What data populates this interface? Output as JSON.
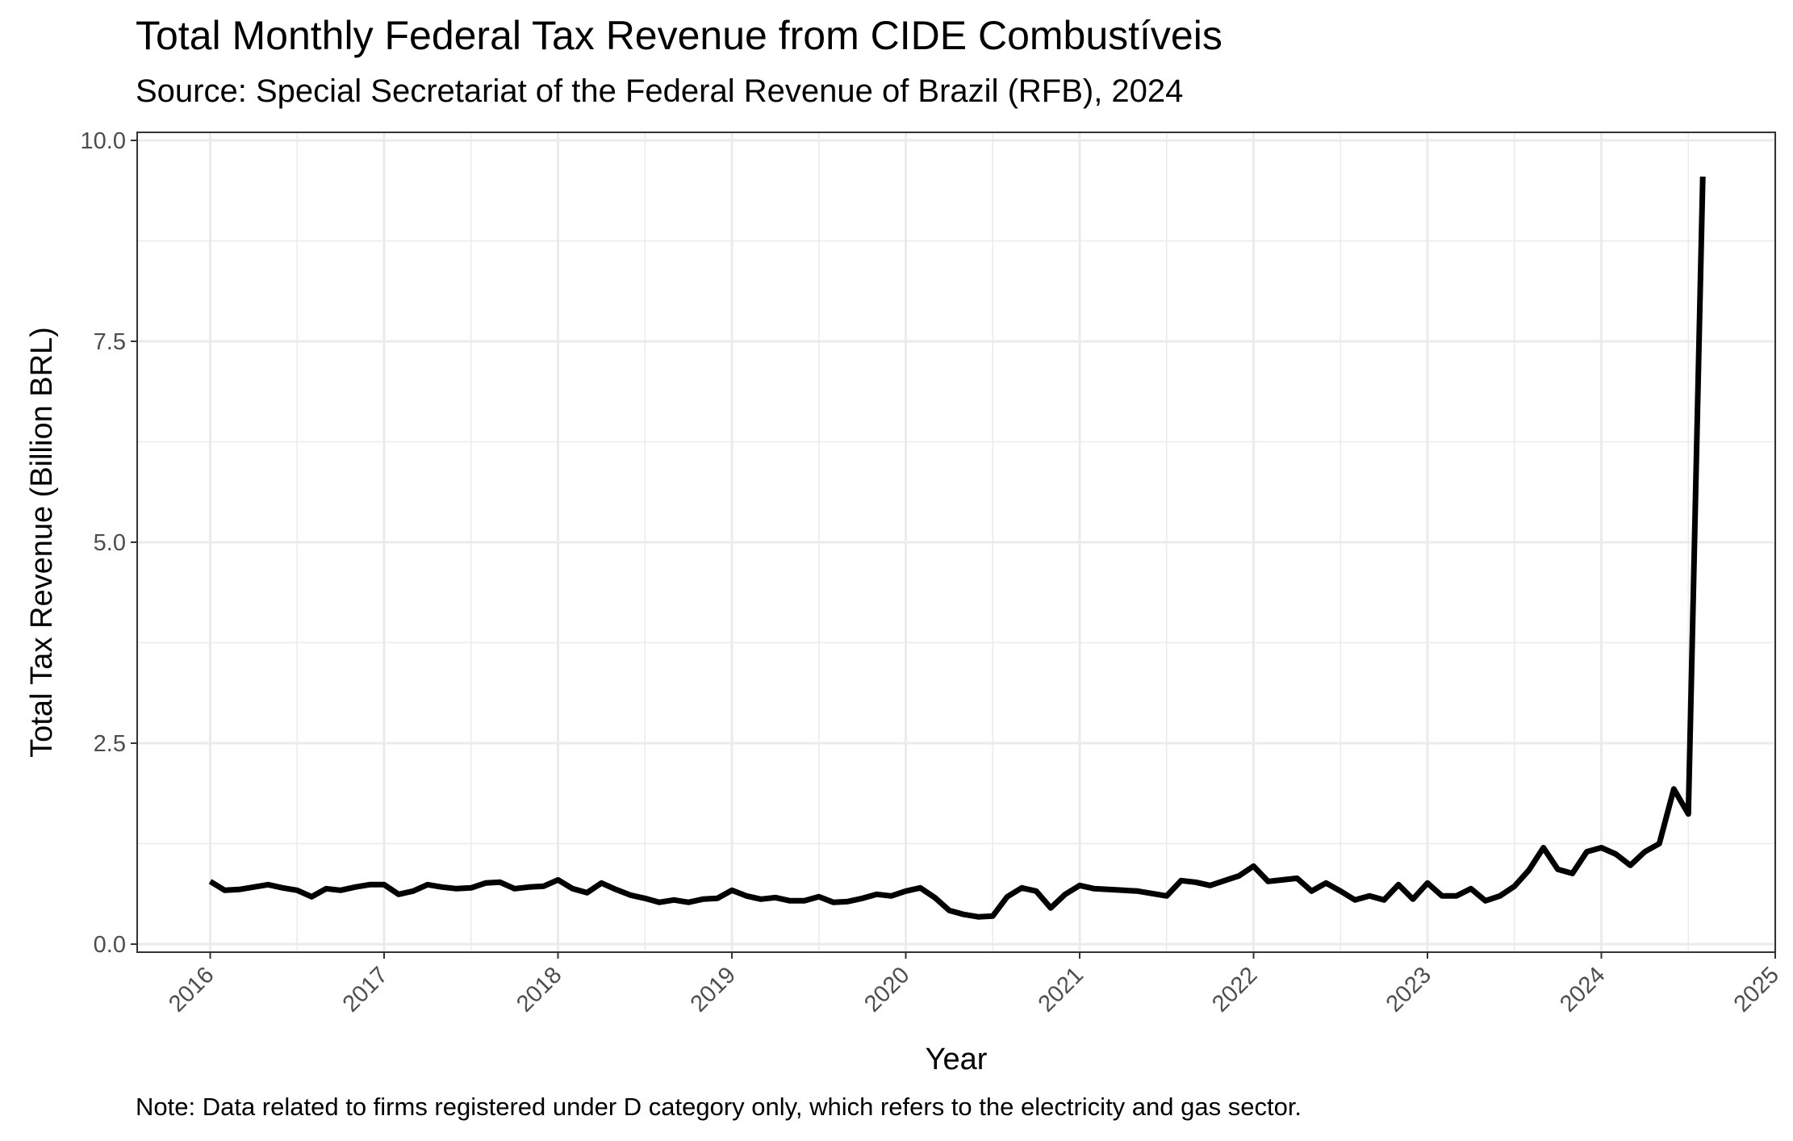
{
  "chart_data": {
    "type": "line",
    "title": "Total Monthly Federal Tax Revenue from CIDE Combustíveis",
    "subtitle": "Source: Special Secretariat of the Federal Revenue of Brazil (RFB), 2024",
    "note": "Note: Data related to firms registered under D category only, which refers to the electricity and gas sector.",
    "xlabel": "Year",
    "ylabel": "Total Tax Revenue (Billion BRL)",
    "xlim": [
      2015.58,
      2025.0
    ],
    "ylim": [
      -0.1,
      10.1
    ],
    "x_ticks": [
      2016,
      2017,
      2018,
      2019,
      2020,
      2021,
      2022,
      2023,
      2024,
      2025
    ],
    "x_tick_labels": [
      "2016",
      "2017",
      "2018",
      "2019",
      "2020",
      "2021",
      "2022",
      "2023",
      "2024",
      "2025"
    ],
    "y_ticks": [
      0,
      2.5,
      5,
      7.5,
      10
    ],
    "y_tick_labels": [
      "0.0",
      "2.5",
      "5.0",
      "7.5",
      "10.0"
    ],
    "grid": true,
    "line_color": "#000000",
    "series": [
      {
        "x_start": "2016-01",
        "values": [
          0.78,
          0.67,
          0.68,
          0.71,
          0.74,
          0.7,
          0.67,
          0.59,
          0.69,
          0.67,
          0.71,
          0.74,
          0.74,
          0.62,
          0.66,
          0.74,
          0.71,
          0.69,
          0.7,
          0.76,
          0.77,
          0.69,
          0.71,
          0.72,
          0.8,
          0.69,
          0.64,
          0.76,
          0.68,
          0.61,
          0.57,
          0.52,
          0.55,
          0.52,
          0.56,
          0.57,
          0.67,
          0.6,
          0.56,
          0.58,
          0.54,
          0.54,
          0.59,
          0.52,
          0.53,
          0.57,
          0.62,
          0.6,
          0.66,
          0.7,
          0.58,
          0.42,
          0.37,
          0.34,
          0.35,
          0.59,
          0.7,
          0.66,
          0.45,
          0.62,
          0.73,
          0.69,
          0.68,
          0.67,
          0.66,
          0.63,
          0.6,
          0.79,
          0.77,
          0.73,
          0.79,
          0.85,
          0.97,
          0.78,
          0.8,
          0.82,
          0.66,
          0.76,
          0.66,
          0.55,
          0.6,
          0.55,
          0.74,
          0.56,
          0.76,
          0.6,
          0.6,
          0.69,
          0.54,
          0.6,
          0.72,
          0.92,
          1.2,
          0.93,
          0.88,
          1.15,
          1.2,
          1.12,
          0.98,
          1.15,
          1.25,
          1.93,
          1.62,
          9.55
        ]
      }
    ]
  }
}
